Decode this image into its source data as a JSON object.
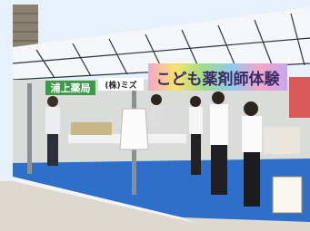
{
  "scene": {
    "banner": "こども薬剤師体験",
    "sign_left": "浦上薬局",
    "sign_center": "(株)ミズ"
  }
}
